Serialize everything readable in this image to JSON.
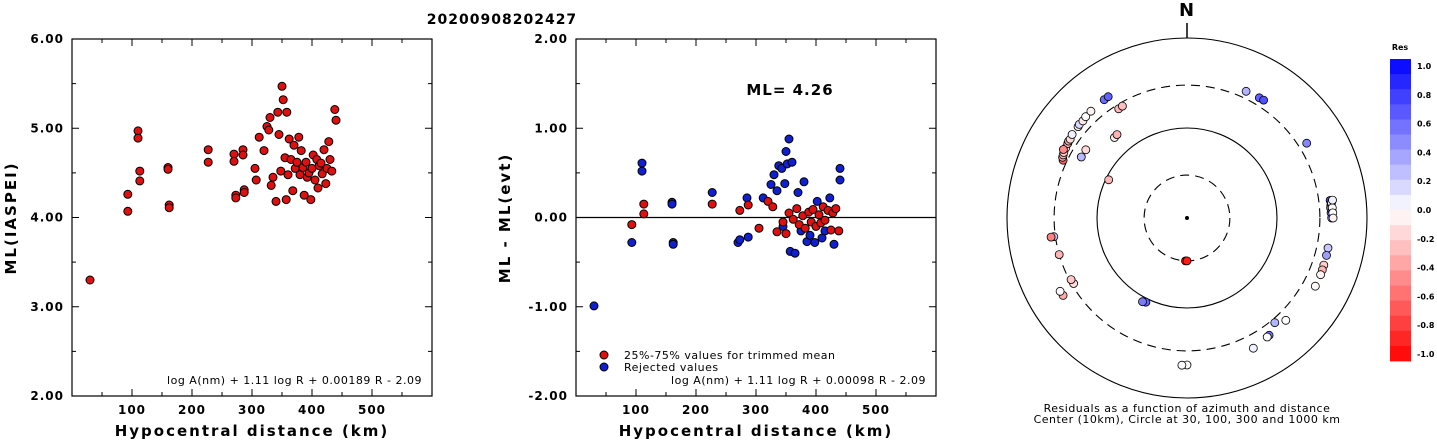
{
  "title": "20200908202427",
  "chart_data": [
    {
      "type": "scatter",
      "xlabel": "Hypocentral distance (km)",
      "ylabel": "ML(IASPEI)",
      "xlim": [
        0,
        600
      ],
      "ylim": [
        2.0,
        6.0
      ],
      "xticks": [
        "100",
        "200",
        "300",
        "400",
        "500"
      ],
      "xtick_values": [
        100,
        200,
        300,
        400,
        500
      ],
      "yticks": [
        "2.00",
        "3.00",
        "4.00",
        "5.00",
        "6.00"
      ],
      "ytick_values": [
        2,
        3,
        4,
        5,
        6
      ],
      "formula": "log A(nm) + 1.11 log R + 0.00189 R - 2.09",
      "series": [
        {
          "color": "#e01010",
          "x": [
            30,
            93,
            93,
            110,
            110,
            113,
            113,
            160,
            160,
            162,
            162,
            227,
            227,
            270,
            270,
            273,
            273,
            285,
            285,
            287,
            287,
            305,
            307,
            312,
            320,
            325,
            328,
            330,
            332,
            335,
            340,
            343,
            345,
            348,
            350,
            352,
            355,
            357,
            358,
            360,
            362,
            365,
            368,
            370,
            372,
            375,
            378,
            380,
            382,
            385,
            387,
            390,
            392,
            395,
            398,
            400,
            402,
            405,
            408,
            410,
            412,
            415,
            417,
            420,
            423,
            425,
            428,
            430,
            433,
            438,
            440
          ],
          "y": [
            3.3,
            4.26,
            4.07,
            4.97,
            4.89,
            4.52,
            4.41,
            4.56,
            4.54,
            4.14,
            4.11,
            4.76,
            4.62,
            4.71,
            4.63,
            4.25,
            4.22,
            4.76,
            4.7,
            4.31,
            4.28,
            4.55,
            4.42,
            4.9,
            4.75,
            5.02,
            4.98,
            5.12,
            4.36,
            4.45,
            4.18,
            5.18,
            4.93,
            4.52,
            5.47,
            5.32,
            4.67,
            4.2,
            5.18,
            4.48,
            4.88,
            4.65,
            4.3,
            4.81,
            4.55,
            4.62,
            4.9,
            4.48,
            4.75,
            4.56,
            4.25,
            4.62,
            4.45,
            4.5,
            4.2,
            4.55,
            4.7,
            4.42,
            4.65,
            4.33,
            4.58,
            4.61,
            4.49,
            4.76,
            4.38,
            4.55,
            4.85,
            4.65,
            4.52,
            5.21,
            5.09
          ]
        }
      ]
    },
    {
      "type": "scatter",
      "xlabel": "Hypocentral distance (km)",
      "ylabel": "ML - ML(evt)",
      "xlim": [
        0,
        600
      ],
      "ylim": [
        -2.0,
        2.0
      ],
      "xticks": [
        "100",
        "200",
        "300",
        "400",
        "500"
      ],
      "xtick_values": [
        100,
        200,
        300,
        400,
        500
      ],
      "yticks": [
        "-2.00",
        "-1.00",
        "0.00",
        "1.00",
        "2.00"
      ],
      "ytick_values": [
        -2,
        -1,
        0,
        1,
        2
      ],
      "annotation": "ML= 4.26",
      "formula": "log A(nm) + 1.11 log R + 0.00098 R - 2.09",
      "legend": [
        "25%-75% values for trimmed mean",
        "Rejected values"
      ],
      "series": [
        {
          "name": "25%-75% values for trimmed mean",
          "color": "#e01010",
          "x": [
            93,
            113,
            113,
            227,
            273,
            287,
            305,
            320,
            328,
            335,
            345,
            350,
            355,
            362,
            368,
            372,
            378,
            382,
            388,
            392,
            395,
            400,
            405,
            408,
            412,
            415,
            420,
            425,
            428,
            433,
            438
          ],
          "y": [
            -0.08,
            0.15,
            0.04,
            0.15,
            0.08,
            0.14,
            -0.12,
            0.18,
            0.12,
            -0.16,
            -0.05,
            -0.18,
            0.05,
            -0.02,
            0.1,
            -0.08,
            0.02,
            -0.12,
            0.06,
            -0.05,
            0.09,
            -0.1,
            0.03,
            -0.06,
            0.12,
            -0.03,
            0.08,
            -0.14,
            0.05,
            0.1,
            -0.15
          ]
        },
        {
          "name": "Rejected values",
          "color": "#1020d0",
          "x": [
            30,
            93,
            110,
            110,
            160,
            160,
            162,
            162,
            227,
            270,
            273,
            285,
            287,
            312,
            325,
            330,
            335,
            338,
            343,
            345,
            348,
            350,
            352,
            355,
            357,
            360,
            365,
            370,
            375,
            380,
            385,
            390,
            398,
            402,
            410,
            415,
            423,
            430,
            440,
            440
          ],
          "y": [
            -0.99,
            -0.28,
            0.61,
            0.52,
            0.17,
            0.15,
            -0.28,
            -0.3,
            0.28,
            -0.28,
            -0.25,
            0.22,
            -0.22,
            0.22,
            0.37,
            0.48,
            0.3,
            0.58,
            0.55,
            -0.1,
            0.38,
            0.74,
            0.6,
            0.88,
            -0.38,
            0.62,
            -0.4,
            0.28,
            -0.15,
            0.4,
            -0.27,
            -0.2,
            -0.28,
            0.18,
            -0.23,
            -0.15,
            0.22,
            -0.3,
            0.55,
            0.42
          ]
        }
      ]
    },
    {
      "type": "polar-scatter",
      "north_label": "N",
      "caption_line1": "Residuals as a function of azimuth and distance",
      "caption_line2": "Center (10km), Circle at 30, 100, 300 and 1000 km",
      "rings_km": [
        30,
        100,
        300,
        1000
      ],
      "colorbar_title": "Res",
      "colorbar_ticks": [
        "1.0",
        "0.8",
        "0.6",
        "0.4",
        "0.2",
        "0.0",
        "-0.2",
        "-0.4",
        "-0.6",
        "-0.8",
        "-1.0"
      ],
      "colorbar_range": [
        -1.0,
        1.0
      ],
      "points": [
        {
          "az": 182,
          "dist": 30,
          "res": -0.99
        },
        {
          "az": 180,
          "dist": 30,
          "res": -0.9
        },
        {
          "az": 296,
          "dist": 93,
          "res": -0.28
        },
        {
          "az": 318,
          "dist": 160,
          "res": -0.05
        },
        {
          "az": 320,
          "dist": 162,
          "res": -0.3
        },
        {
          "az": 206,
          "dist": 110,
          "res": 0.61
        },
        {
          "az": 208,
          "dist": 113,
          "res": 0.52
        },
        {
          "az": 304,
          "dist": 227,
          "res": -0.15
        },
        {
          "az": 300,
          "dist": 227,
          "res": 0.28
        },
        {
          "az": 328,
          "dist": 270,
          "res": -0.28
        },
        {
          "az": 330,
          "dist": 273,
          "res": -0.25
        },
        {
          "az": 240,
          "dist": 285,
          "res": -0.12
        },
        {
          "az": 242,
          "dist": 287,
          "res": -0.22
        },
        {
          "az": 262,
          "dist": 312,
          "res": 0.22
        },
        {
          "az": 254,
          "dist": 300,
          "res": -0.3
        },
        {
          "az": 295,
          "dist": 330,
          "res": -0.6
        },
        {
          "az": 262,
          "dist": 335,
          "res": -0.5
        },
        {
          "az": 296,
          "dist": 345,
          "res": -0.4
        },
        {
          "az": 297,
          "dist": 350,
          "res": -0.3
        },
        {
          "az": 298,
          "dist": 355,
          "res": -0.2
        },
        {
          "az": 300,
          "dist": 360,
          "res": -0.1
        },
        {
          "az": 302,
          "dist": 365,
          "res": -0.25
        },
        {
          "az": 303,
          "dist": 370,
          "res": -0.35
        },
        {
          "az": 299,
          "dist": 372,
          "res": -0.45
        },
        {
          "az": 304,
          "dist": 368,
          "res": -0.15
        },
        {
          "az": 306,
          "dist": 378,
          "res": 0.05
        },
        {
          "az": 310,
          "dist": 380,
          "res": -0.05
        },
        {
          "az": 311,
          "dist": 385,
          "res": 0.15
        },
        {
          "az": 313,
          "dist": 382,
          "res": -0.1
        },
        {
          "az": 315,
          "dist": 390,
          "res": 0.0
        },
        {
          "az": 318,
          "dist": 395,
          "res": -0.05
        },
        {
          "az": 325,
          "dist": 402,
          "res": 0.58
        },
        {
          "az": 327,
          "dist": 405,
          "res": 0.62
        },
        {
          "az": 25,
          "dist": 358,
          "res": 0.3
        },
        {
          "az": 31,
          "dist": 362,
          "res": 0.62
        },
        {
          "az": 33,
          "dist": 365,
          "res": 0.68
        },
        {
          "az": 58,
          "dist": 370,
          "res": 0.48
        },
        {
          "az": 83,
          "dist": 400,
          "res": 0.74
        },
        {
          "az": 85,
          "dist": 402,
          "res": 0.6
        },
        {
          "az": 86,
          "dist": 398,
          "res": 0.55
        },
        {
          "az": 88,
          "dist": 400,
          "res": 0.5
        },
        {
          "az": 90,
          "dist": 405,
          "res": 0.4
        },
        {
          "az": 87,
          "dist": 410,
          "res": 0.45
        },
        {
          "az": 84,
          "dist": 412,
          "res": 0.02
        },
        {
          "az": 86,
          "dist": 415,
          "res": -0.02
        },
        {
          "az": 88,
          "dist": 418,
          "res": 0.0
        },
        {
          "az": 90,
          "dist": 420,
          "res": -0.05
        },
        {
          "az": 83,
          "dist": 425,
          "res": 0.05
        },
        {
          "az": 102,
          "dist": 400,
          "res": 0.22
        },
        {
          "az": 105,
          "dist": 402,
          "res": 0.38
        },
        {
          "az": 109,
          "dist": 405,
          "res": -0.2
        },
        {
          "az": 111,
          "dist": 408,
          "res": -0.3
        },
        {
          "az": 113,
          "dist": 410,
          "res": -0.05
        },
        {
          "az": 118,
          "dist": 412,
          "res": -0.02
        },
        {
          "az": 136,
          "dist": 380,
          "res": 0.0
        },
        {
          "az": 145,
          "dist": 390,
          "res": 0.55
        },
        {
          "az": 146,
          "dist": 393,
          "res": 0.0
        },
        {
          "az": 140,
          "dist": 330,
          "res": 0.3
        },
        {
          "az": 153,
          "dist": 420,
          "res": 0.05
        },
        {
          "az": 180,
          "dist": 430,
          "res": 0.0
        },
        {
          "az": 182,
          "dist": 433,
          "res": 0.02
        },
        {
          "az": 238,
          "dist": 420,
          "res": -0.35
        },
        {
          "az": 240,
          "dist": 425,
          "res": 0.02
        }
      ]
    }
  ]
}
